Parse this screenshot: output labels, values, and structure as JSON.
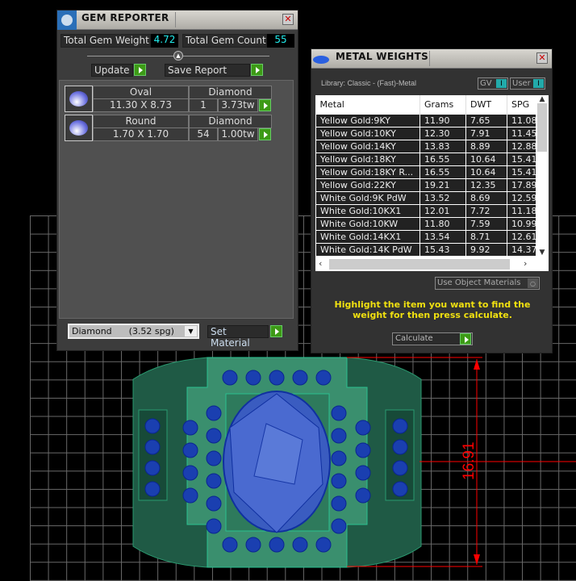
{
  "gem_reporter": {
    "title": "GEM REPORTER",
    "total_weight_label": "Total Gem Weight",
    "total_weight": "4.72",
    "total_count_label": "Total Gem Count",
    "total_count": "55",
    "update_label": "Update",
    "save_report_label": "Save Report",
    "gems": [
      {
        "shape": "Oval",
        "material": "Diamond",
        "size": "11.30 X 8.73",
        "count": "1",
        "weight": "3.73tw"
      },
      {
        "shape": "Round",
        "material": "Diamond",
        "size": "1.70 X 1.70",
        "count": "54",
        "weight": "1.00tw"
      }
    ],
    "material_select": "Diamond      (3.52 spg)",
    "set_material_label": "Set Material"
  },
  "metal_weights": {
    "title": "METAL WEIGHTS",
    "library": "Library: Classic - (Fast)-Metal",
    "gv_label": "GV",
    "user_label": "User",
    "columns": [
      "Metal",
      "Grams",
      "DWT",
      "SPG"
    ],
    "rows": [
      [
        "Yellow Gold:9KY",
        "11.90",
        "7.65",
        "11.08"
      ],
      [
        "Yellow Gold:10KY",
        "12.30",
        "7.91",
        "11.45"
      ],
      [
        "Yellow Gold:14KY",
        "13.83",
        "8.89",
        "12.88"
      ],
      [
        "Yellow Gold:18KY",
        "16.55",
        "10.64",
        "15.41"
      ],
      [
        "Yellow Gold:18KY R...",
        "16.55",
        "10.64",
        "15.41"
      ],
      [
        "Yellow Gold:22KY",
        "19.21",
        "12.35",
        "17.89"
      ],
      [
        "White Gold:9K PdW",
        "13.52",
        "8.69",
        "12.59"
      ],
      [
        "White Gold:10KX1",
        "12.01",
        "7.72",
        "11.18"
      ],
      [
        "White Gold:10KW",
        "11.80",
        "7.59",
        "10.99"
      ],
      [
        "White Gold:14KX1",
        "13.54",
        "8.71",
        "12.61"
      ],
      [
        "White Gold:14K PdW",
        "15.43",
        "9.92",
        "14.37"
      ]
    ],
    "use_object_materials_label": "Use Object Materials",
    "instruction": "Highlight the item you want to find the weight for then press calculate.",
    "calculate_label": "Calculate",
    "instruction_color": "#f0e010"
  },
  "viewport": {
    "dimension": "16.91",
    "dimension_color": "#ff0000",
    "ring_color": "#2e8b65",
    "gem_color": "#1a3fb0"
  }
}
